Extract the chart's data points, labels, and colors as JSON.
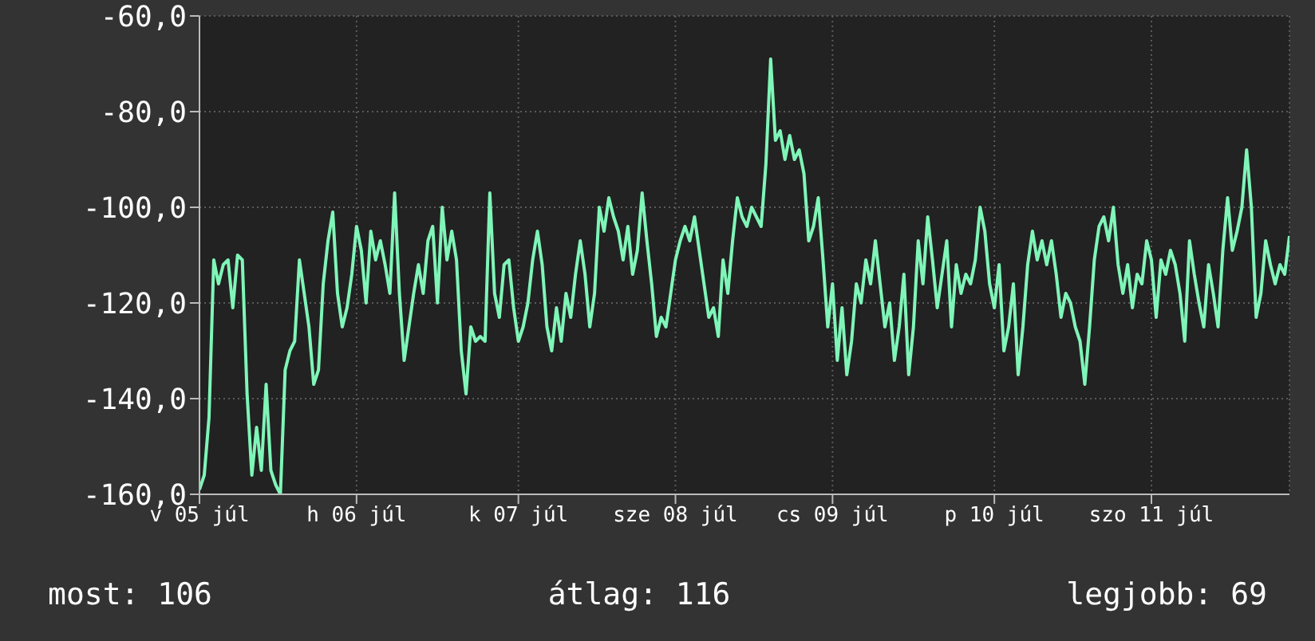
{
  "chart_data": {
    "type": "line",
    "categories": [
      "v 05 júl",
      null,
      null,
      null,
      null,
      null,
      null,
      null,
      null,
      null,
      null,
      null,
      null,
      null,
      null,
      null,
      null,
      null,
      null,
      null,
      null,
      null,
      null,
      null,
      null,
      null,
      null,
      null,
      null,
      null,
      null,
      null,
      null,
      "h 06 júl",
      null,
      null,
      null,
      null,
      null,
      null,
      null,
      null,
      null,
      null,
      null,
      null,
      null,
      null,
      null,
      null,
      null,
      null,
      null,
      null,
      null,
      null,
      null,
      null,
      null,
      null,
      null,
      null,
      null,
      null,
      null,
      null,
      null,
      "k 07 júl",
      null,
      null,
      null,
      null,
      null,
      null,
      null,
      null,
      null,
      null,
      null,
      null,
      null,
      null,
      null,
      null,
      null,
      null,
      null,
      null,
      null,
      null,
      null,
      null,
      null,
      null,
      null,
      null,
      null,
      null,
      null,
      null,
      "sze 08 júl",
      null,
      null,
      null,
      null,
      null,
      null,
      null,
      null,
      null,
      null,
      null,
      null,
      null,
      null,
      null,
      null,
      null,
      null,
      null,
      null,
      null,
      null,
      null,
      null,
      null,
      null,
      null,
      null,
      null,
      null,
      null,
      null,
      "cs 09 júl",
      null,
      null,
      null,
      null,
      null,
      null,
      null,
      null,
      null,
      null,
      null,
      null,
      null,
      null,
      null,
      null,
      null,
      null,
      null,
      null,
      null,
      null,
      null,
      null,
      null,
      null,
      null,
      null,
      null,
      null,
      null,
      null,
      null,
      "p 10 júl",
      null,
      null,
      null,
      null,
      null,
      null,
      null,
      null,
      null,
      null,
      null,
      null,
      null,
      null,
      null,
      null,
      null,
      null,
      null,
      null,
      null,
      null,
      null,
      null,
      null,
      null,
      null,
      null,
      null,
      null,
      null,
      null,
      "szo 11 júl",
      null,
      null,
      null,
      null,
      null,
      null,
      null,
      null,
      null,
      null,
      null,
      null,
      null,
      null,
      null,
      null,
      null,
      null,
      null,
      null,
      null,
      null,
      null,
      null,
      null,
      null,
      null,
      null,
      null
    ],
    "series": [
      {
        "color": "#7ff5b8",
        "values": [
          -159,
          -156,
          -144,
          -111,
          -116,
          -112,
          -111,
          -121,
          -110,
          -111,
          -139,
          -156,
          -146,
          -155,
          -137,
          -155,
          -158,
          -160,
          -134,
          -130,
          -128,
          -111,
          -118,
          -125,
          -137,
          -134,
          -116,
          -107,
          -101,
          -118,
          -125,
          -121,
          -114,
          -104,
          -109,
          -120,
          -105,
          -111,
          -107,
          -112,
          -118,
          -97,
          -118,
          -132,
          -125,
          -118,
          -112,
          -118,
          -107,
          -104,
          -120,
          -100,
          -111,
          -105,
          -111,
          -130,
          -139,
          -125,
          -128,
          -127,
          -128,
          -97,
          -118,
          -123,
          -112,
          -111,
          -121,
          -128,
          -125,
          -120,
          -111,
          -105,
          -112,
          -125,
          -130,
          -121,
          -128,
          -118,
          -123,
          -114,
          -107,
          -114,
          -125,
          -118,
          -100,
          -105,
          -98,
          -102,
          -105,
          -111,
          -104,
          -114,
          -109,
          -97,
          -107,
          -116,
          -127,
          -123,
          -125,
          -118,
          -111,
          -107,
          -104,
          -107,
          -102,
          -109,
          -116,
          -123,
          -121,
          -127,
          -111,
          -118,
          -107,
          -98,
          -102,
          -104,
          -100,
          -102,
          -104,
          -91,
          -69,
          -86,
          -84,
          -90,
          -85,
          -90,
          -88,
          -93,
          -107,
          -104,
          -98,
          -111,
          -125,
          -116,
          -132,
          -121,
          -135,
          -128,
          -116,
          -120,
          -111,
          -116,
          -107,
          -116,
          -125,
          -120,
          -132,
          -125,
          -114,
          -135,
          -125,
          -107,
          -116,
          -102,
          -111,
          -121,
          -114,
          -107,
          -125,
          -112,
          -118,
          -114,
          -116,
          -111,
          -100,
          -105,
          -116,
          -121,
          -112,
          -130,
          -125,
          -116,
          -135,
          -125,
          -112,
          -105,
          -111,
          -107,
          -112,
          -107,
          -114,
          -123,
          -118,
          -120,
          -125,
          -128,
          -137,
          -125,
          -111,
          -104,
          -102,
          -107,
          -100,
          -112,
          -118,
          -112,
          -121,
          -114,
          -116,
          -107,
          -111,
          -123,
          -111,
          -114,
          -109,
          -112,
          -118,
          -128,
          -107,
          -114,
          -120,
          -125,
          -112,
          -118,
          -125,
          -109,
          -98,
          -109,
          -105,
          -100,
          -88,
          -100,
          -123,
          -118,
          -107,
          -112,
          -116,
          -112,
          -114,
          -106
        ]
      }
    ],
    "ylim": [
      -160,
      -60
    ],
    "yticks": [
      {
        "value": -160,
        "label": "-160,0"
      },
      {
        "value": -140,
        "label": "-140,0"
      },
      {
        "value": -120,
        "label": "-120,0"
      },
      {
        "value": -100,
        "label": "-100,0"
      },
      {
        "value": -80,
        "label": "-80,0"
      },
      {
        "value": -60,
        "label": "-60,0"
      }
    ],
    "grid": true,
    "marker": "none",
    "line_style": "solid",
    "annotations": [
      "most: 106",
      "átlag: 116",
      "legjobb: 69"
    ]
  }
}
